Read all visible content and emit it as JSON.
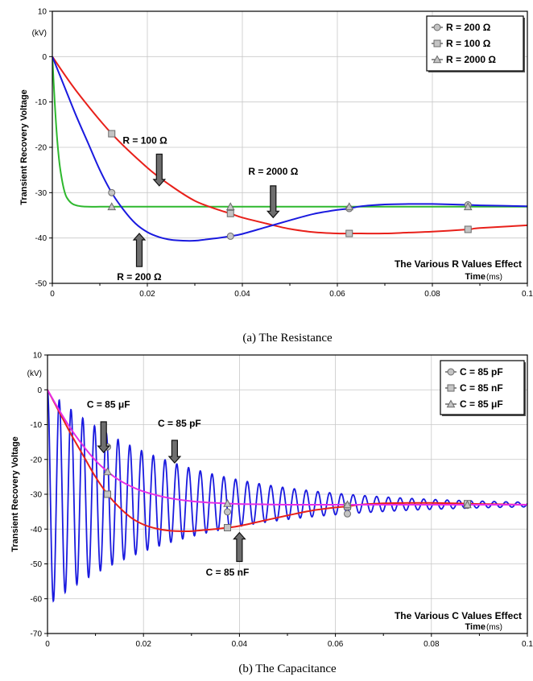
{
  "captions": [
    "(a) The Resistance",
    "(b) The Capacitance"
  ],
  "chart_data": [
    {
      "type": "line",
      "title": "",
      "ylabel": "Transient Recovery Voltage",
      "yunit": "(kV)",
      "xlabel": "Time",
      "xunit": "(ms)",
      "xlim": [
        0,
        0.1
      ],
      "ylim": [
        -50,
        10
      ],
      "xticks": [
        0,
        0.02,
        0.04,
        0.06,
        0.08,
        0.1
      ],
      "xtick_labels": [
        "0",
        "0.02",
        "0.04",
        "0.06",
        "0.08",
        "0.1"
      ],
      "yticks": [
        10,
        0,
        -10,
        -20,
        -30,
        -40,
        -50
      ],
      "ytick_labels": [
        "10",
        "0",
        "-10",
        "-20",
        "-30",
        "-40",
        "-50"
      ],
      "grid": true,
      "legend_position": "top-right",
      "corner_note": "The Various R Values Effect",
      "series": [
        {
          "name": "R = 200 Ω",
          "color": "#1a1adf",
          "marker": "circle",
          "x": [
            0,
            0.0025,
            0.005,
            0.0075,
            0.01,
            0.0125,
            0.015,
            0.0175,
            0.02,
            0.0225,
            0.025,
            0.0275,
            0.03,
            0.0325,
            0.035,
            0.0375,
            0.04,
            0.045,
            0.05,
            0.055,
            0.06,
            0.0625,
            0.065,
            0.07,
            0.075,
            0.08,
            0.0875,
            0.09,
            0.1
          ],
          "y": [
            0,
            -6.5,
            -13,
            -19,
            -25,
            -30,
            -33.8,
            -36.8,
            -38.7,
            -39.8,
            -40.4,
            -40.6,
            -40.6,
            -40.3,
            -40.0,
            -39.6,
            -39.1,
            -37.6,
            -36.1,
            -34.7,
            -33.8,
            -33.5,
            -33.0,
            -32.6,
            -32.5,
            -32.5,
            -32.7,
            -32.8,
            -33.0
          ],
          "marker_x": [
            0.0125,
            0.0375,
            0.0625,
            0.0875
          ]
        },
        {
          "name": "R = 100 Ω",
          "color": "#e8201a",
          "marker": "square",
          "x": [
            0,
            0.005,
            0.0125,
            0.02,
            0.025,
            0.03,
            0.035,
            0.0375,
            0.04,
            0.045,
            0.05,
            0.055,
            0.06,
            0.0625,
            0.065,
            0.07,
            0.075,
            0.08,
            0.0875,
            0.09,
            0.1
          ],
          "y": [
            0,
            -7.5,
            -17,
            -24.5,
            -28.5,
            -31.8,
            -33.8,
            -34.6,
            -35.5,
            -36.8,
            -38.0,
            -38.7,
            -39.0,
            -39.0,
            -39.0,
            -39.0,
            -38.8,
            -38.6,
            -38.1,
            -37.8,
            -37.2
          ],
          "marker_x": [
            0.0125,
            0.0375,
            0.0625,
            0.0875
          ]
        },
        {
          "name": "R = 2000 Ω",
          "color": "#2eb82e",
          "marker": "triangle",
          "x": [
            0,
            0.0005,
            0.001,
            0.0015,
            0.002,
            0.0025,
            0.003,
            0.004,
            0.005,
            0.006,
            0.0075,
            0.01,
            0.0125,
            0.03,
            0.05,
            0.07,
            0.09,
            0.1
          ],
          "y": [
            0,
            -10,
            -18,
            -23.5,
            -27,
            -29.5,
            -31,
            -32.3,
            -32.8,
            -33.0,
            -33.1,
            -33.1,
            -33.1,
            -33.1,
            -33.1,
            -33.1,
            -33.1,
            -33.1
          ],
          "marker_x": [
            0.0125,
            0.0375,
            0.0625,
            0.0875
          ]
        }
      ],
      "annotations": [
        {
          "text": "R = 100 Ω",
          "label_x": 0.0195,
          "label_y": -19.2,
          "arrow_x": 0.0225,
          "arrow_from_y": -21.5,
          "arrow_to_y": -28.5
        },
        {
          "text": "R = 2000 Ω",
          "label_x": 0.0465,
          "label_y": -26,
          "arrow_x": 0.0465,
          "arrow_from_y": -28.5,
          "arrow_to_y": -35.5
        },
        {
          "text": "R = 200 Ω",
          "label_x": 0.0183,
          "label_y": -49.3,
          "arrow_x": 0.0183,
          "arrow_from_y": -46.3,
          "arrow_to_y": -39
        }
      ]
    },
    {
      "type": "line",
      "title": "",
      "ylabel": "Transient Recovery Voltage",
      "yunit": "(kV)",
      "xlabel": "Time",
      "xunit": "(ms)",
      "xlim": [
        0,
        0.1
      ],
      "ylim": [
        -70,
        10
      ],
      "xticks": [
        0,
        0.02,
        0.04,
        0.06,
        0.08,
        0.1
      ],
      "xtick_labels": [
        "0",
        "0.02",
        "0.04",
        "0.06",
        "0.08",
        "0.1"
      ],
      "yticks": [
        10,
        0,
        -10,
        -20,
        -30,
        -40,
        -50,
        -60,
        -70
      ],
      "ytick_labels": [
        "10",
        "0",
        "-10",
        "-20",
        "-30",
        "-40",
        "-50",
        "-60",
        "-70"
      ],
      "grid": true,
      "legend_position": "top-right",
      "corner_note": "The Various C Values Effect",
      "series": [
        {
          "name": "C = 85 pF",
          "color": "#1a1adf",
          "marker": "circle",
          "model": {
            "final": -33,
            "initial_amplitude": 31,
            "decay_ms": 0.026,
            "period_ms": 0.00245
          },
          "marker_x": [
            0.0125,
            0.0375,
            0.0625,
            0.0875
          ]
        },
        {
          "name": "C = 85 nF",
          "color": "#e8201a",
          "marker": "square",
          "x": [
            0,
            0.0025,
            0.005,
            0.0075,
            0.01,
            0.0125,
            0.015,
            0.0175,
            0.02,
            0.0225,
            0.025,
            0.0275,
            0.03,
            0.0325,
            0.035,
            0.0375,
            0.04,
            0.045,
            0.05,
            0.055,
            0.06,
            0.0625,
            0.065,
            0.07,
            0.075,
            0.08,
            0.0875,
            0.09,
            0.1
          ],
          "y": [
            0,
            -6.5,
            -13,
            -19,
            -25,
            -30,
            -33.8,
            -36.8,
            -38.7,
            -39.8,
            -40.4,
            -40.6,
            -40.6,
            -40.3,
            -40.0,
            -39.6,
            -39.1,
            -37.6,
            -36.1,
            -34.7,
            -33.8,
            -33.5,
            -33.0,
            -32.6,
            -32.5,
            -32.5,
            -32.7,
            -32.8,
            -33.0
          ],
          "marker_x": [
            0.0125,
            0.0375,
            0.0625,
            0.0875
          ]
        },
        {
          "name": "C = 85 μF",
          "color": "#e62ee6",
          "marker": "triangle",
          "x": [
            0,
            0.0025,
            0.005,
            0.0075,
            0.01,
            0.0125,
            0.015,
            0.0175,
            0.02,
            0.025,
            0.03,
            0.035,
            0.04,
            0.045,
            0.05,
            0.06,
            0.07,
            0.08,
            0.09,
            0.1
          ],
          "y": [
            0,
            -6.0,
            -11.5,
            -16.2,
            -20.3,
            -23.5,
            -26,
            -27.8,
            -29.2,
            -31.0,
            -32.0,
            -32.5,
            -32.8,
            -32.9,
            -33.0,
            -33.0,
            -33.0,
            -33.0,
            -33.0,
            -33.0
          ],
          "marker_x": [
            0.0125,
            0.0375,
            0.0625,
            0.0875
          ]
        }
      ],
      "annotations": [
        {
          "text": "C = 85 μF",
          "label_x": 0.0127,
          "label_y": -5.2,
          "arrow_x": 0.0117,
          "arrow_from_y": -9.2,
          "arrow_to_y": -18
        },
        {
          "text": "C = 85 pF",
          "label_x": 0.0275,
          "label_y": -10.6,
          "arrow_x": 0.0265,
          "arrow_from_y": -14.5,
          "arrow_to_y": -21
        },
        {
          "text": "C = 85 nF",
          "label_x": 0.0375,
          "label_y": -53.3,
          "arrow_x": 0.04,
          "arrow_from_y": -49.3,
          "arrow_to_y": -41
        }
      ]
    }
  ]
}
